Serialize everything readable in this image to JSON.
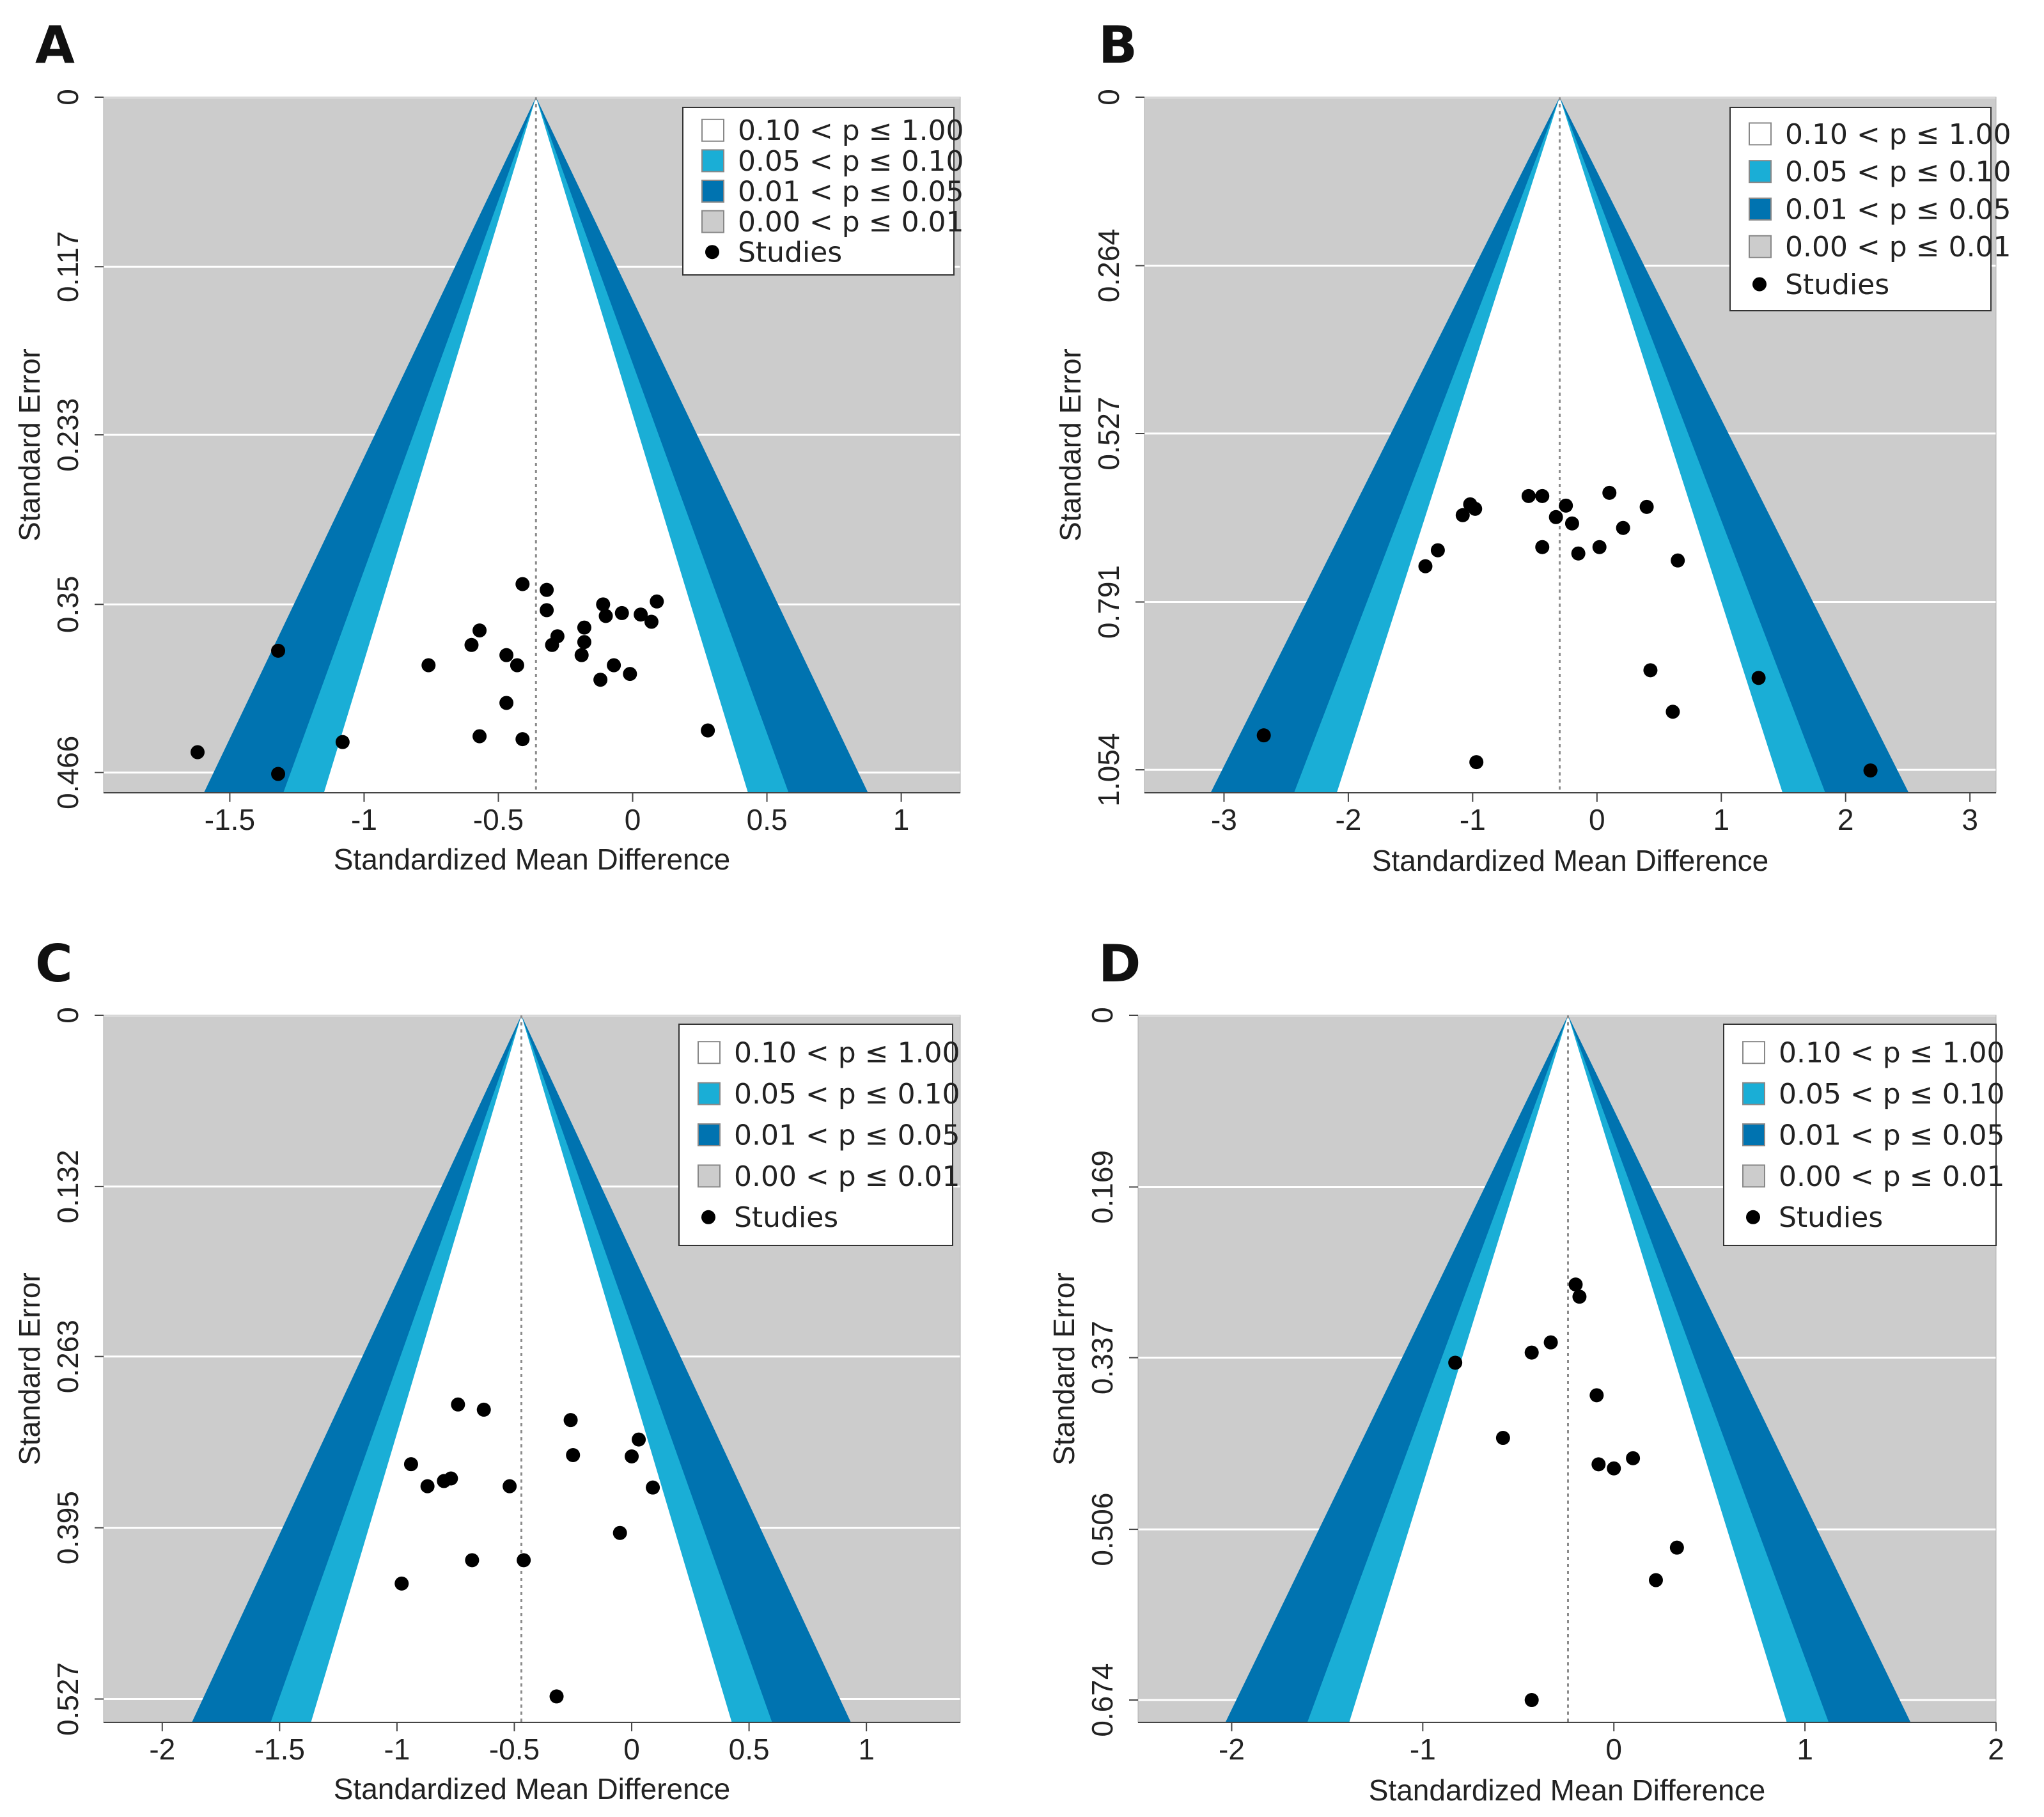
{
  "colors": {
    "panel_bg": "#cccccc",
    "p_010_100": "#ffffff",
    "p_005_010": "#1aaed6",
    "p_001_005": "#0073b0",
    "p_000_001": "#cccccc",
    "gridline": "#ffffff",
    "points": "#000000",
    "center_line": "#8c8c8c"
  },
  "legend_entries": [
    {
      "label": "0.10 < p ≤ 1.00",
      "swatch": "p_010_100"
    },
    {
      "label": "0.05 < p ≤ 0.10",
      "swatch": "p_005_010"
    },
    {
      "label": "0.01 < p ≤ 0.05",
      "swatch": "p_001_005"
    },
    {
      "label": "0.00 < p ≤ 0.01",
      "swatch": "p_000_001"
    },
    {
      "label": "Studies",
      "swatch": "dot"
    }
  ],
  "chart_data": [
    {
      "panel": "A",
      "type": "scatter",
      "xlabel": "Standardized Mean Difference",
      "ylabel": "Standard Error",
      "xlim": [
        -1.97,
        1.22
      ],
      "ylim": [
        0,
        0.48
      ],
      "x_ticks": [
        -1.5,
        -1,
        -0.5,
        0,
        0.5,
        1
      ],
      "x_tick_labels": [
        "-1.5",
        "-1",
        "-0.5",
        "0",
        "0.5",
        "1"
      ],
      "y_ticks": [
        0,
        0.117,
        0.233,
        0.35,
        0.466
      ],
      "y_tick_labels": [
        "0",
        "0.117",
        "0.233",
        "0.35",
        "0.466"
      ],
      "center_estimate": -0.36,
      "funnel_se_max": 0.48,
      "legend_position": "top-right",
      "grid": true,
      "points": [
        {
          "x": -1.62,
          "y": 0.452
        },
        {
          "x": -1.32,
          "y": 0.382
        },
        {
          "x": -1.32,
          "y": 0.467
        },
        {
          "x": -1.08,
          "y": 0.445
        },
        {
          "x": -0.76,
          "y": 0.392
        },
        {
          "x": -0.6,
          "y": 0.378
        },
        {
          "x": -0.57,
          "y": 0.368
        },
        {
          "x": -0.57,
          "y": 0.441
        },
        {
          "x": -0.47,
          "y": 0.385
        },
        {
          "x": -0.47,
          "y": 0.418
        },
        {
          "x": -0.43,
          "y": 0.392
        },
        {
          "x": -0.41,
          "y": 0.336
        },
        {
          "x": -0.41,
          "y": 0.443
        },
        {
          "x": -0.32,
          "y": 0.34
        },
        {
          "x": -0.32,
          "y": 0.354
        },
        {
          "x": -0.3,
          "y": 0.378
        },
        {
          "x": -0.28,
          "y": 0.372
        },
        {
          "x": -0.19,
          "y": 0.385
        },
        {
          "x": -0.18,
          "y": 0.366
        },
        {
          "x": -0.18,
          "y": 0.376
        },
        {
          "x": -0.12,
          "y": 0.402
        },
        {
          "x": -0.11,
          "y": 0.35
        },
        {
          "x": -0.1,
          "y": 0.358
        },
        {
          "x": -0.07,
          "y": 0.392
        },
        {
          "x": -0.04,
          "y": 0.356
        },
        {
          "x": -0.01,
          "y": 0.398
        },
        {
          "x": 0.03,
          "y": 0.357
        },
        {
          "x": 0.07,
          "y": 0.362
        },
        {
          "x": 0.09,
          "y": 0.348
        },
        {
          "x": 0.28,
          "y": 0.437
        }
      ]
    },
    {
      "panel": "B",
      "type": "scatter",
      "xlabel": "Standardized Mean Difference",
      "ylabel": "Standard Error",
      "xlim": [
        -3.64,
        3.21
      ],
      "ylim": [
        0,
        1.09
      ],
      "x_ticks": [
        -3,
        -2,
        -1,
        0,
        1,
        2,
        3
      ],
      "x_tick_labels": [
        "-3",
        "-2",
        "-1",
        "0",
        "1",
        "2",
        "3"
      ],
      "y_ticks": [
        0,
        0.264,
        0.527,
        0.791,
        1.054
      ],
      "y_tick_labels": [
        "0",
        "0.264",
        "0.527",
        "0.791",
        "1.054"
      ],
      "center_estimate": -0.3,
      "funnel_se_max": 1.09,
      "legend_position": "top-right",
      "grid": true,
      "points": [
        {
          "x": -2.68,
          "y": 1.0
        },
        {
          "x": -1.38,
          "y": 0.735
        },
        {
          "x": -1.28,
          "y": 0.71
        },
        {
          "x": -1.08,
          "y": 0.655
        },
        {
          "x": -1.02,
          "y": 0.638
        },
        {
          "x": -0.98,
          "y": 0.645
        },
        {
          "x": -0.97,
          "y": 1.042
        },
        {
          "x": -0.55,
          "y": 0.625
        },
        {
          "x": -0.44,
          "y": 0.625
        },
        {
          "x": -0.44,
          "y": 0.705
        },
        {
          "x": -0.33,
          "y": 0.658
        },
        {
          "x": -0.25,
          "y": 0.64
        },
        {
          "x": -0.2,
          "y": 0.668
        },
        {
          "x": -0.15,
          "y": 0.715
        },
        {
          "x": 0.02,
          "y": 0.705
        },
        {
          "x": 0.1,
          "y": 0.62
        },
        {
          "x": 0.21,
          "y": 0.675
        },
        {
          "x": 0.4,
          "y": 0.642
        },
        {
          "x": 0.43,
          "y": 0.898
        },
        {
          "x": 0.61,
          "y": 0.963
        },
        {
          "x": 0.65,
          "y": 0.726
        },
        {
          "x": 1.3,
          "y": 0.91
        },
        {
          "x": 2.2,
          "y": 1.055
        }
      ]
    },
    {
      "panel": "C",
      "type": "scatter",
      "xlabel": "Standardized Mean Difference",
      "ylabel": "Standard Error",
      "xlim": [
        -2.25,
        1.4
      ],
      "ylim": [
        0,
        0.545
      ],
      "x_ticks": [
        -2,
        -1.5,
        -1,
        -0.5,
        0,
        0.5,
        1
      ],
      "x_tick_labels": [
        "-2",
        "-1.5",
        "-1",
        "-0.5",
        "0",
        "0.5",
        "1"
      ],
      "y_ticks": [
        0,
        0.132,
        0.263,
        0.395,
        0.527
      ],
      "y_tick_labels": [
        "0",
        "0.132",
        "0.263",
        "0.395",
        "0.527"
      ],
      "center_estimate": -0.47,
      "funnel_se_max": 0.545,
      "legend_position": "top-right",
      "grid": true,
      "points": [
        {
          "x": -0.98,
          "y": 0.438
        },
        {
          "x": -0.94,
          "y": 0.346
        },
        {
          "x": -0.87,
          "y": 0.363
        },
        {
          "x": -0.8,
          "y": 0.359
        },
        {
          "x": -0.77,
          "y": 0.357
        },
        {
          "x": -0.74,
          "y": 0.3
        },
        {
          "x": -0.68,
          "y": 0.42
        },
        {
          "x": -0.63,
          "y": 0.304
        },
        {
          "x": -0.52,
          "y": 0.363
        },
        {
          "x": -0.46,
          "y": 0.42
        },
        {
          "x": -0.32,
          "y": 0.525
        },
        {
          "x": -0.26,
          "y": 0.312
        },
        {
          "x": -0.25,
          "y": 0.339
        },
        {
          "x": -0.05,
          "y": 0.399
        },
        {
          "x": 0.0,
          "y": 0.34
        },
        {
          "x": 0.03,
          "y": 0.327
        },
        {
          "x": 0.09,
          "y": 0.364
        }
      ]
    },
    {
      "panel": "D",
      "type": "scatter",
      "xlabel": "Standardized Mean Difference",
      "ylabel": "Standard Error",
      "xlim": [
        -2.49,
        2.0
      ],
      "ylim": [
        0,
        0.696
      ],
      "x_ticks": [
        -2,
        -1,
        0,
        1,
        2
      ],
      "x_tick_labels": [
        "-2",
        "-1",
        "0",
        "1",
        "2"
      ],
      "y_ticks": [
        0,
        0.169,
        0.337,
        0.506,
        0.674
      ],
      "y_tick_labels": [
        "0",
        "0.169",
        "0.337",
        "0.506",
        "0.674"
      ],
      "center_estimate": -0.24,
      "funnel_se_max": 0.696,
      "legend_position": "top-right",
      "grid": true,
      "points": [
        {
          "x": -0.83,
          "y": 0.342
        },
        {
          "x": -0.58,
          "y": 0.416
        },
        {
          "x": -0.43,
          "y": 0.332
        },
        {
          "x": -0.43,
          "y": 0.674
        },
        {
          "x": -0.33,
          "y": 0.322
        },
        {
          "x": -0.2,
          "y": 0.265
        },
        {
          "x": -0.18,
          "y": 0.277
        },
        {
          "x": -0.09,
          "y": 0.374
        },
        {
          "x": -0.08,
          "y": 0.442
        },
        {
          "x": 0.0,
          "y": 0.446
        },
        {
          "x": 0.1,
          "y": 0.436
        },
        {
          "x": 0.22,
          "y": 0.556
        },
        {
          "x": 0.33,
          "y": 0.524
        }
      ]
    }
  ]
}
